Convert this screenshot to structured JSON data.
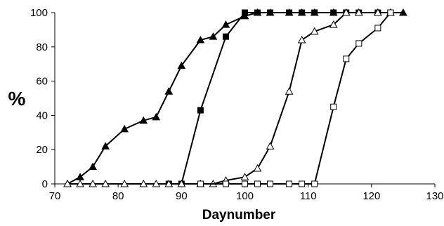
{
  "chart_data": {
    "type": "line",
    "xlabel": "Daynumber",
    "ylabel": "%",
    "xlim": [
      70,
      130
    ],
    "ylim": [
      0,
      100
    ],
    "xticks": [
      70,
      80,
      90,
      100,
      110,
      120,
      130
    ],
    "yticks": [
      0,
      20,
      40,
      60,
      80,
      100
    ],
    "grid": false,
    "legend": "none",
    "series": [
      {
        "marker": "filled-triangle",
        "x": [
          72,
          74,
          76,
          78,
          81,
          84,
          86,
          88,
          90,
          93,
          95,
          97,
          100,
          102,
          104,
          107,
          109,
          111,
          114,
          116,
          118,
          121,
          123,
          125
        ],
        "y": [
          0,
          4,
          10,
          22,
          32,
          37,
          39,
          54,
          69,
          84,
          86,
          93,
          98,
          100,
          100,
          100,
          100,
          100,
          100,
          100,
          100,
          100,
          100,
          100
        ]
      },
      {
        "marker": "filled-square",
        "x": [
          88,
          90,
          93,
          97,
          100,
          102,
          104,
          107,
          109,
          111,
          114,
          116,
          118,
          121,
          123
        ],
        "y": [
          0,
          0,
          43,
          86,
          100,
          100,
          100,
          100,
          100,
          100,
          100,
          100,
          100,
          100,
          100
        ]
      },
      {
        "marker": "open-triangle",
        "x": [
          72,
          74,
          76,
          78,
          81,
          84,
          86,
          88,
          90,
          93,
          95,
          97,
          100,
          102,
          104,
          107,
          109,
          111,
          114,
          116,
          118,
          121,
          123
        ],
        "y": [
          0,
          0,
          0,
          0,
          0,
          0,
          0,
          0,
          0,
          0,
          0,
          2,
          4,
          9,
          22,
          54,
          84,
          89,
          93,
          100,
          100,
          100,
          100
        ]
      },
      {
        "marker": "open-square",
        "x": [
          93,
          97,
          100,
          102,
          104,
          107,
          109,
          111,
          114,
          116,
          118,
          121,
          123
        ],
        "y": [
          0,
          0,
          0,
          0,
          0,
          0,
          0,
          0,
          45,
          73,
          82,
          91,
          100
        ]
      }
    ]
  }
}
